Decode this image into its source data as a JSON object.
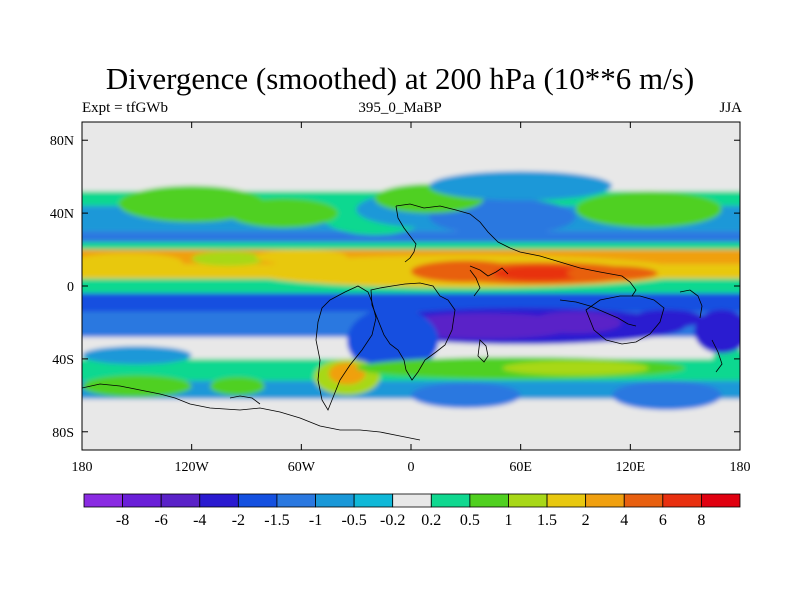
{
  "header": {
    "title": "Divergence (smoothed) at 200 hPa (10**6 m/s)",
    "left_label": "Expt = tfGWb",
    "center_label": "395_0_MaBP",
    "right_label": "JJA"
  },
  "chart_data": {
    "type": "heatmap",
    "title": "Divergence (smoothed) at 200 hPa (10**6 m/s)",
    "experiment": "Expt = tfGWb",
    "run": "395_0_MaBP",
    "season": "JJA",
    "x_ticks": [
      {
        "value": -180,
        "label": "180"
      },
      {
        "value": -120,
        "label": "120W"
      },
      {
        "value": -60,
        "label": "60W"
      },
      {
        "value": 0,
        "label": "0"
      },
      {
        "value": 60,
        "label": "60E"
      },
      {
        "value": 120,
        "label": "120E"
      },
      {
        "value": 180,
        "label": "180"
      }
    ],
    "y_ticks": [
      {
        "value": 80,
        "label": "80N"
      },
      {
        "value": 40,
        "label": "40N"
      },
      {
        "value": 0,
        "label": "0"
      },
      {
        "value": -40,
        "label": "40S"
      },
      {
        "value": -80,
        "label": "80S"
      }
    ],
    "xlim": [
      -180,
      180
    ],
    "ylim": [
      -90,
      90
    ],
    "colorbar": {
      "colors": [
        "#8a2be2",
        "#6a1fd8",
        "#5a22c8",
        "#2a1ad0",
        "#1450e0",
        "#2a78e0",
        "#1a98d8",
        "#10b8d8",
        "#e8e8e8",
        "#10d890",
        "#50d020",
        "#a8d818",
        "#e8c810",
        "#f0a010",
        "#e86010",
        "#e83010",
        "#e00010"
      ],
      "labels": [
        "-8",
        "-6",
        "-4",
        "-2",
        "-1.5",
        "-1",
        "-0.5",
        "-0.2",
        "0.2",
        "0.5",
        "1",
        "1.5",
        "2",
        "4",
        "6",
        "8"
      ]
    },
    "bands": [
      {
        "lat_top": 90,
        "lat_bot": 52,
        "level": 8
      },
      {
        "lat_top": 52,
        "lat_bot": 44,
        "level": 9
      },
      {
        "lat_top": 44,
        "lat_bot": 30,
        "level": 6
      },
      {
        "lat_top": 30,
        "lat_bot": 24,
        "level": 5
      },
      {
        "lat_top": 24,
        "lat_bot": 20,
        "level": 9
      },
      {
        "lat_top": 20,
        "lat_bot": 12,
        "level": 13
      },
      {
        "lat_top": 12,
        "lat_bot": 4,
        "level": 12
      },
      {
        "lat_top": 4,
        "lat_bot": -4,
        "level": 9
      },
      {
        "lat_top": -4,
        "lat_bot": -14,
        "level": 4
      },
      {
        "lat_top": -14,
        "lat_bot": -28,
        "level": 5
      },
      {
        "lat_top": -28,
        "lat_bot": -40,
        "level": 8
      },
      {
        "lat_top": -40,
        "lat_bot": -52,
        "level": 9
      },
      {
        "lat_top": -52,
        "lat_bot": -62,
        "level": 6
      },
      {
        "lat_top": -62,
        "lat_bot": -90,
        "level": 8
      }
    ],
    "blobs": [
      {
        "lon": 30,
        "lat": 8,
        "rlon": 120,
        "rlat": 9,
        "level": 12
      },
      {
        "lon": 70,
        "lat": 7,
        "rlon": 55,
        "rlat": 6,
        "level": 14
      },
      {
        "lon": 30,
        "lat": 8,
        "rlon": 30,
        "rlat": 6,
        "level": 14
      },
      {
        "lon": 70,
        "lat": 7,
        "rlon": 25,
        "rlat": 4,
        "level": 15
      },
      {
        "lon": 110,
        "lat": 7,
        "rlon": 25,
        "rlat": 4,
        "level": 14
      },
      {
        "lon": -155,
        "lat": 13,
        "rlon": 30,
        "rlat": 5,
        "level": 12
      },
      {
        "lon": -100,
        "lat": 15,
        "rlon": 20,
        "rlat": 4,
        "level": 11
      },
      {
        "lon": -60,
        "lat": 16,
        "rlon": 25,
        "rlat": 4,
        "level": 12
      },
      {
        "lon": -20,
        "lat": 40,
        "rlon": 30,
        "rlat": 12,
        "level": 9
      },
      {
        "lon": 10,
        "lat": 42,
        "rlon": 40,
        "rlat": 10,
        "level": 6
      },
      {
        "lon": 50,
        "lat": 38,
        "rlon": 40,
        "rlat": 10,
        "level": 5
      },
      {
        "lon": 10,
        "lat": 48,
        "rlon": 30,
        "rlat": 8,
        "level": 10
      },
      {
        "lon": 60,
        "lat": 55,
        "rlon": 50,
        "rlat": 8,
        "level": 6
      },
      {
        "lon": -120,
        "lat": 45,
        "rlon": 40,
        "rlat": 10,
        "level": 10
      },
      {
        "lon": -70,
        "lat": 40,
        "rlon": 30,
        "rlat": 8,
        "level": 10
      },
      {
        "lon": 130,
        "lat": 42,
        "rlon": 40,
        "rlat": 10,
        "level": 10
      },
      {
        "lon": 60,
        "lat": -22,
        "rlon": 90,
        "rlat": 10,
        "level": 3
      },
      {
        "lon": 40,
        "lat": -22,
        "rlon": 50,
        "rlat": 7,
        "level": 2
      },
      {
        "lon": 90,
        "lat": -20,
        "rlon": 25,
        "rlat": 6,
        "level": 2
      },
      {
        "lon": 140,
        "lat": -18,
        "rlon": 20,
        "rlat": 5,
        "level": 3
      },
      {
        "lon": -10,
        "lat": -30,
        "rlon": 25,
        "rlat": 18,
        "level": 4
      },
      {
        "lon": -35,
        "lat": -50,
        "rlon": 18,
        "rlat": 10,
        "level": 11
      },
      {
        "lon": -35,
        "lat": -48,
        "rlon": 10,
        "rlat": 6,
        "level": 13
      },
      {
        "lon": 60,
        "lat": -45,
        "rlon": 90,
        "rlat": 6,
        "level": 10
      },
      {
        "lon": 90,
        "lat": -45,
        "rlon": 40,
        "rlat": 4,
        "level": 11
      },
      {
        "lon": -150,
        "lat": -55,
        "rlon": 30,
        "rlat": 6,
        "level": 10
      },
      {
        "lon": -95,
        "lat": -55,
        "rlon": 15,
        "rlat": 5,
        "level": 10
      },
      {
        "lon": 30,
        "lat": -60,
        "rlon": 30,
        "rlat": 7,
        "level": 5
      },
      {
        "lon": 140,
        "lat": -60,
        "rlon": 30,
        "rlat": 8,
        "level": 5
      },
      {
        "lon": 175,
        "lat": -40,
        "rlon": 10,
        "rlat": 6,
        "level": 9
      },
      {
        "lon": -150,
        "lat": -38,
        "rlon": 30,
        "rlat": 5,
        "level": 6
      },
      {
        "lon": 170,
        "lat": -25,
        "rlon": 15,
        "rlat": 12,
        "level": 3
      }
    ]
  }
}
